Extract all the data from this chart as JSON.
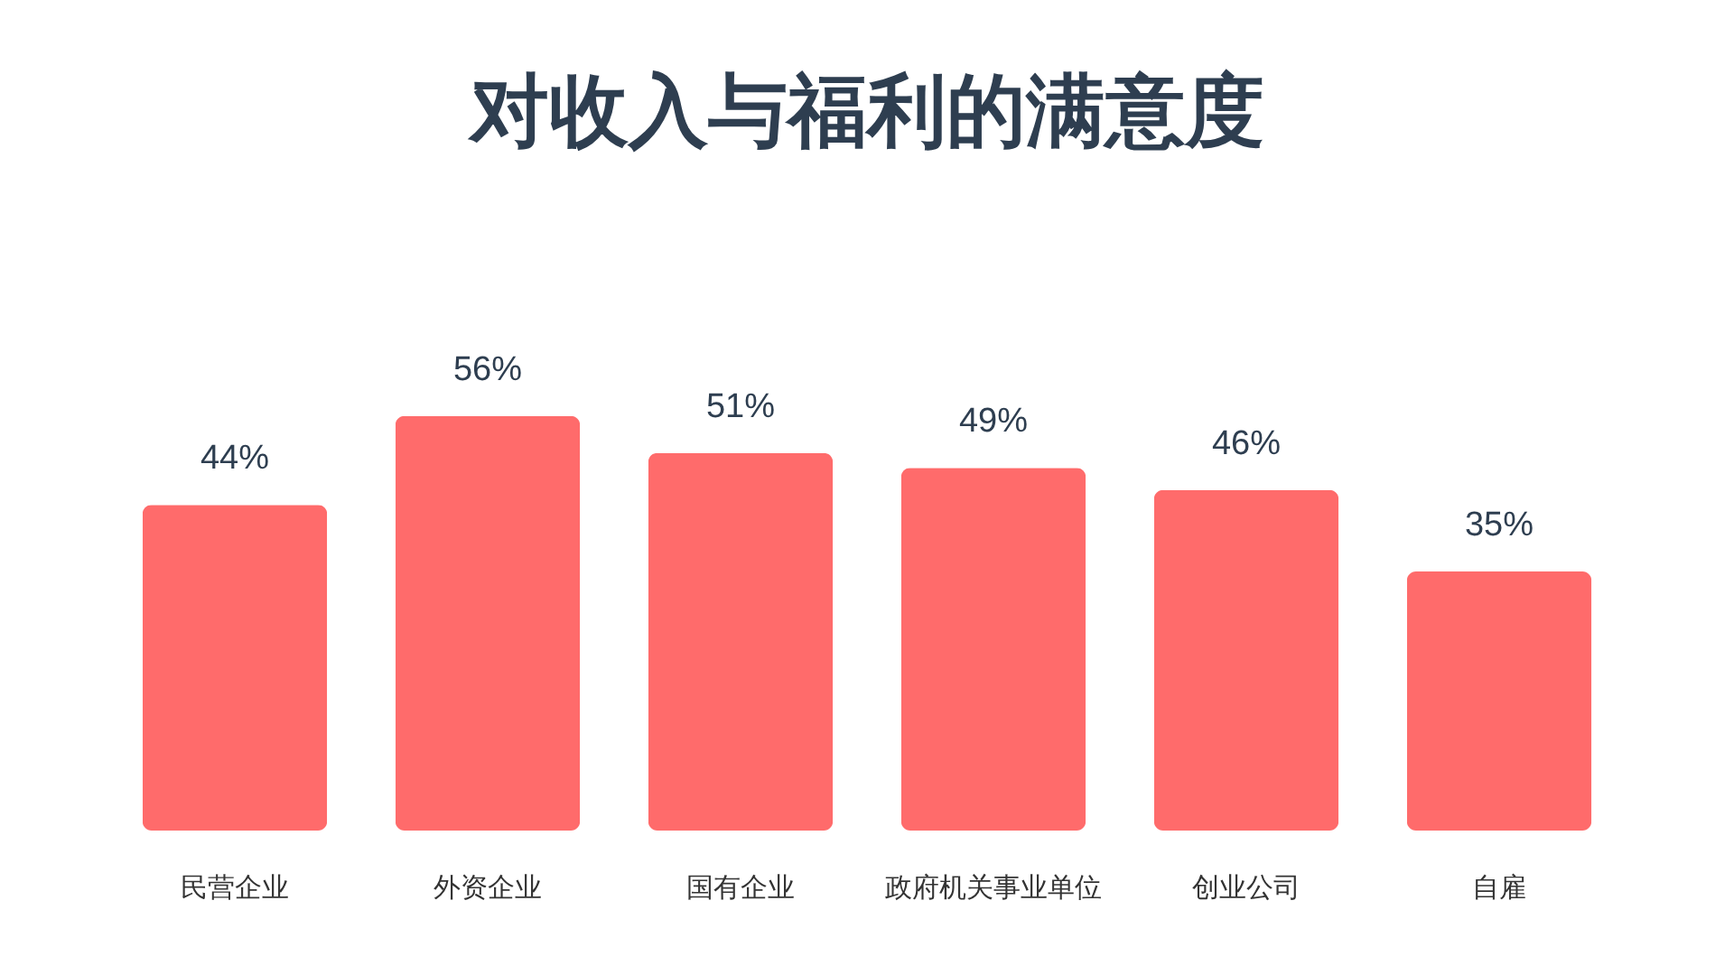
{
  "chart_data": {
    "type": "bar",
    "title": "对收入与福利的满意度",
    "categories": [
      "民营企业",
      "外资企业",
      "国有企业",
      "政府机关事业单位",
      "创业公司",
      "自雇"
    ],
    "values": [
      44,
      56,
      51,
      49,
      46,
      35
    ],
    "value_labels": [
      "44%",
      "56%",
      "51%",
      "49%",
      "46%",
      "35%"
    ],
    "color": "#ff6b6b"
  }
}
